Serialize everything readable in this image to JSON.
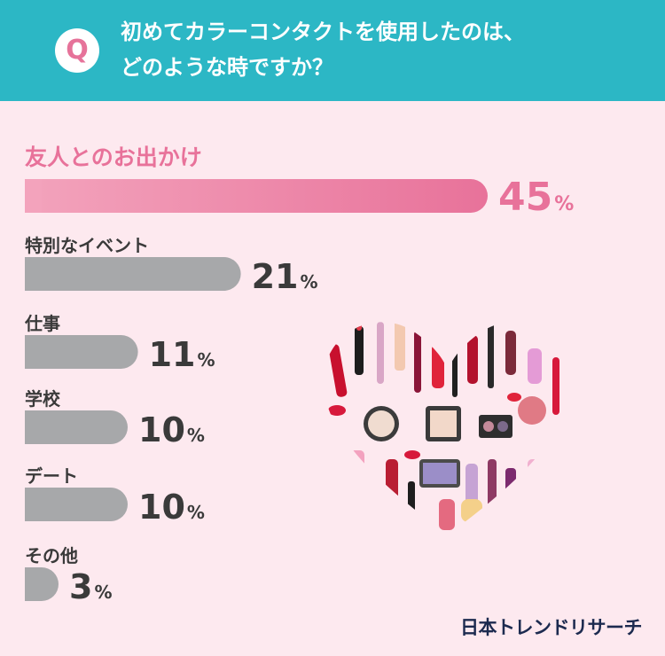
{
  "question": {
    "badge": "Q",
    "line1": "初めてカラーコンタクトを使用したのは、",
    "line2": "どのような時ですか？"
  },
  "chart_data": {
    "type": "bar",
    "orientation": "horizontal",
    "categories": [
      "友人とのお出かけ",
      "特別なイベント",
      "仕事",
      "学校",
      "デート",
      "その他"
    ],
    "values": [
      45,
      21,
      11,
      10,
      10,
      3
    ],
    "unit": "%",
    "highlight_index": 0,
    "colors": {
      "highlight": "#e8729a",
      "highlight_light": "#f3a3bc",
      "default": "#a7a8aa",
      "label_highlight": "#e8729a",
      "label_default": "#3a3a3a"
    },
    "grid": false,
    "legend": "none"
  },
  "brand": "日本トレンドリサーチ",
  "decoration": {
    "heart_icon": "cosmetics-heart-illustration"
  }
}
